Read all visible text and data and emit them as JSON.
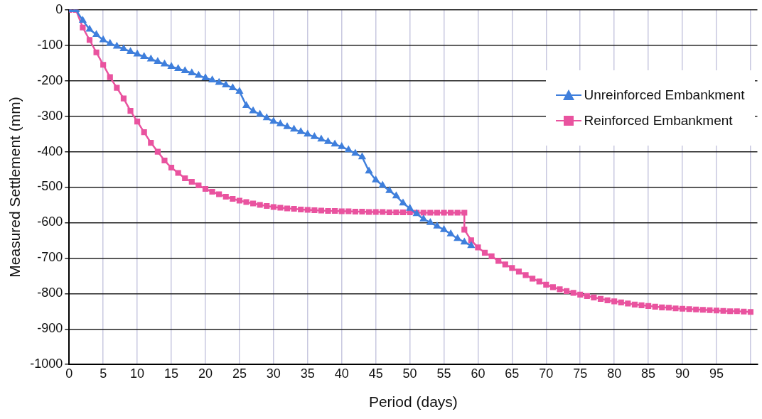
{
  "chart_data": {
    "type": "line",
    "xlabel": "Period (days)",
    "ylabel": "Measured Settlement (mm)",
    "xlim": [
      0,
      101
    ],
    "xticks": [
      0,
      5,
      10,
      15,
      20,
      25,
      30,
      35,
      40,
      45,
      50,
      55,
      60,
      65,
      70,
      75,
      80,
      85,
      90,
      95,
      {
        "value": 100,
        "label": null
      }
    ],
    "ylim": [
      -1000,
      0
    ],
    "yticks": [
      0,
      -100,
      -200,
      -300,
      -400,
      -500,
      -600,
      -700,
      -800,
      -900,
      -1000
    ],
    "grid": true,
    "legend": "top right",
    "series": [
      {
        "name": "Unreinforced Embankment",
        "color": "#3f7fdc",
        "marker": "triangle",
        "x": [
          0,
          1,
          2,
          3,
          4,
          5,
          6,
          7,
          8,
          9,
          10,
          11,
          12,
          13,
          14,
          15,
          16,
          17,
          18,
          19,
          20,
          21,
          22,
          23,
          24,
          25,
          26,
          27,
          28,
          29,
          30,
          31,
          32,
          33,
          34,
          35,
          36,
          37,
          38,
          39,
          40,
          41,
          42,
          43,
          44,
          45,
          46,
          47,
          48,
          49,
          50,
          51,
          52,
          53,
          54,
          55,
          56,
          57,
          58,
          59
        ],
        "values": [
          0,
          0,
          -30,
          -55,
          -70,
          -85,
          -95,
          -103,
          -110,
          -118,
          -125,
          -132,
          -139,
          -146,
          -153,
          -160,
          -166,
          -172,
          -178,
          -185,
          -192,
          -198,
          -205,
          -212,
          -220,
          -230,
          -270,
          -285,
          -295,
          -305,
          -315,
          -322,
          -330,
          -337,
          -344,
          -351,
          -358,
          -365,
          -372,
          -379,
          -386,
          -395,
          -405,
          -415,
          -455,
          -480,
          -495,
          -510,
          -525,
          -545,
          -560,
          -575,
          -590,
          -600,
          -610,
          -620,
          -632,
          -645,
          -655,
          -665
        ]
      },
      {
        "name": "Reinforced Embankment",
        "color": "#e9539f",
        "marker": "square",
        "x": [
          0,
          1,
          2,
          3,
          4,
          5,
          6,
          7,
          8,
          9,
          10,
          11,
          12,
          13,
          14,
          15,
          16,
          17,
          18,
          19,
          20,
          21,
          22,
          23,
          24,
          25,
          26,
          27,
          28,
          29,
          30,
          31,
          32,
          33,
          34,
          35,
          36,
          37,
          38,
          39,
          40,
          41,
          42,
          43,
          44,
          45,
          46,
          47,
          48,
          49,
          50,
          51,
          52,
          53,
          54,
          55,
          56,
          57,
          58,
          58,
          59,
          60,
          61,
          62,
          63,
          64,
          65,
          66,
          67,
          68,
          69,
          70,
          71,
          72,
          73,
          74,
          75,
          76,
          77,
          78,
          79,
          80,
          81,
          82,
          83,
          84,
          85,
          86,
          87,
          88,
          89,
          90,
          91,
          92,
          93,
          94,
          95,
          96,
          97,
          98,
          99,
          100
        ],
        "values": [
          0,
          0,
          -50,
          -85,
          -120,
          -155,
          -190,
          -220,
          -250,
          -285,
          -315,
          -345,
          -375,
          -400,
          -425,
          -445,
          -460,
          -475,
          -485,
          -495,
          -505,
          -513,
          -520,
          -527,
          -533,
          -538,
          -542,
          -546,
          -550,
          -553,
          -556,
          -558,
          -560,
          -561,
          -563,
          -564,
          -565,
          -566,
          -567,
          -567,
          -568,
          -568,
          -569,
          -569,
          -570,
          -570,
          -570,
          -571,
          -571,
          -571,
          -571,
          -572,
          -572,
          -572,
          -572,
          -572,
          -572,
          -572,
          -572,
          -620,
          -650,
          -670,
          -685,
          -695,
          -708,
          -718,
          -728,
          -738,
          -748,
          -758,
          -766,
          -775,
          -782,
          -788,
          -793,
          -798,
          -803,
          -807,
          -811,
          -815,
          -819,
          -822,
          -825,
          -828,
          -831,
          -833,
          -835,
          -837,
          -839,
          -840,
          -842,
          -843,
          -844,
          -845,
          -846,
          -847,
          -848,
          -849,
          -850,
          -850,
          -851,
          -852
        ]
      }
    ]
  }
}
